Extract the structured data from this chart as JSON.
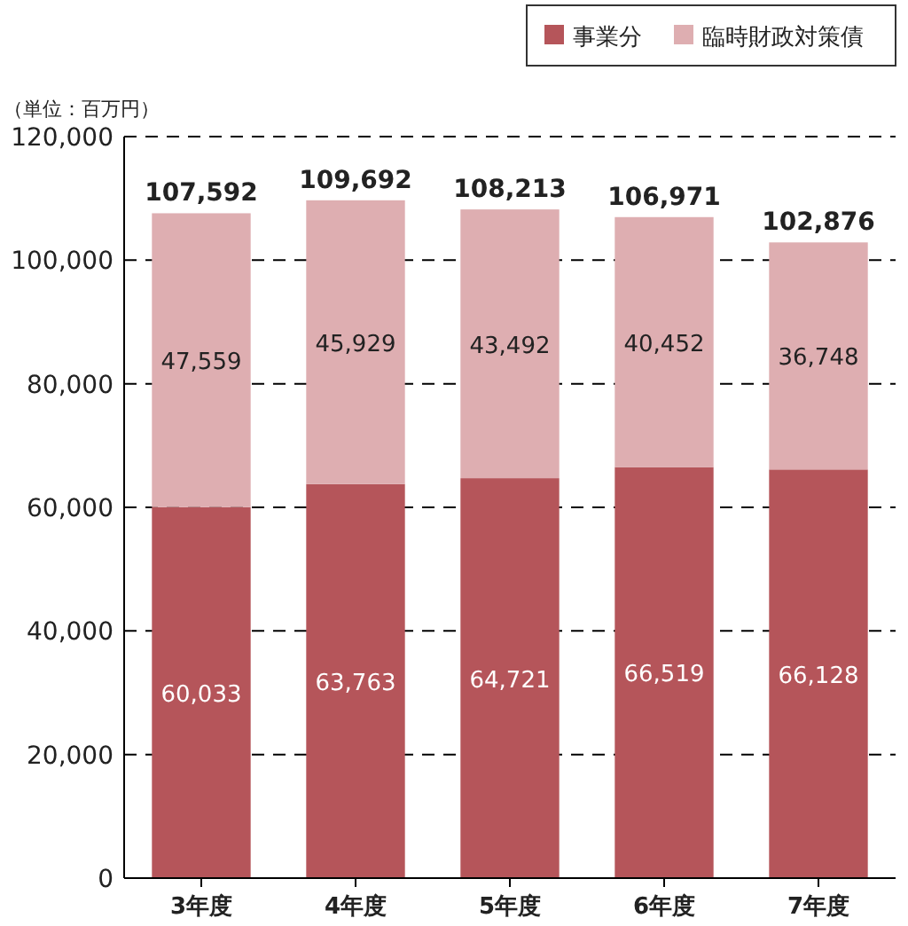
{
  "chart_data": {
    "type": "bar",
    "stacked": true,
    "ylabel": "（単位：百万円）",
    "categories": [
      "3年度",
      "4年度",
      "5年度",
      "6年度",
      "7年度"
    ],
    "series": [
      {
        "name": "事業分",
        "color": "#b5555a",
        "values": [
          60033,
          63763,
          64721,
          66519,
          66128
        ],
        "value_labels": [
          "60,033",
          "63,763",
          "64,721",
          "66,519",
          "66,128"
        ]
      },
      {
        "name": "臨時財政対策債",
        "color": "#deaeb1",
        "values": [
          47559,
          45929,
          43492,
          40452,
          36748
        ],
        "value_labels": [
          "47,559",
          "45,929",
          "43,492",
          "40,452",
          "36,748"
        ]
      }
    ],
    "ylim": [
      0,
      120000
    ],
    "yticks": [
      0,
      {
        "value": 20000,
        "label": "20,000"
      },
      {
        "value": 40000,
        "label": "40,000"
      },
      {
        "value": 60000,
        "label": "60,000"
      },
      {
        "value": 80000,
        "label": "80,000"
      },
      {
        "value": 100000,
        "label": "100,000"
      },
      {
        "value": 120000,
        "label": "120,000"
      }
    ],
    "grid": "y",
    "legend": "top right",
    "totals": [
      "107,592",
      "109,692",
      "108,213",
      "106,971",
      "102,876"
    ]
  }
}
